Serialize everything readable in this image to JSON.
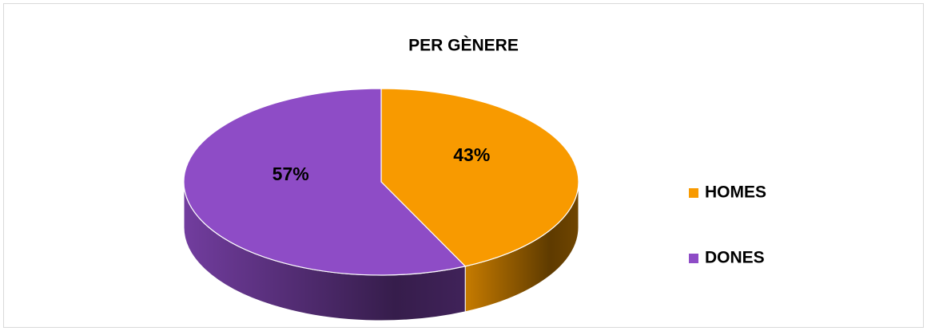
{
  "chart_data": {
    "type": "pie",
    "title": "PER GÈNERE",
    "categories": [
      "HOMES",
      "DONES"
    ],
    "values": [
      43,
      57
    ],
    "value_labels": [
      "43%",
      "57%"
    ],
    "colors": [
      "#f89a00",
      "#8e4cc6"
    ],
    "legend": "right"
  }
}
